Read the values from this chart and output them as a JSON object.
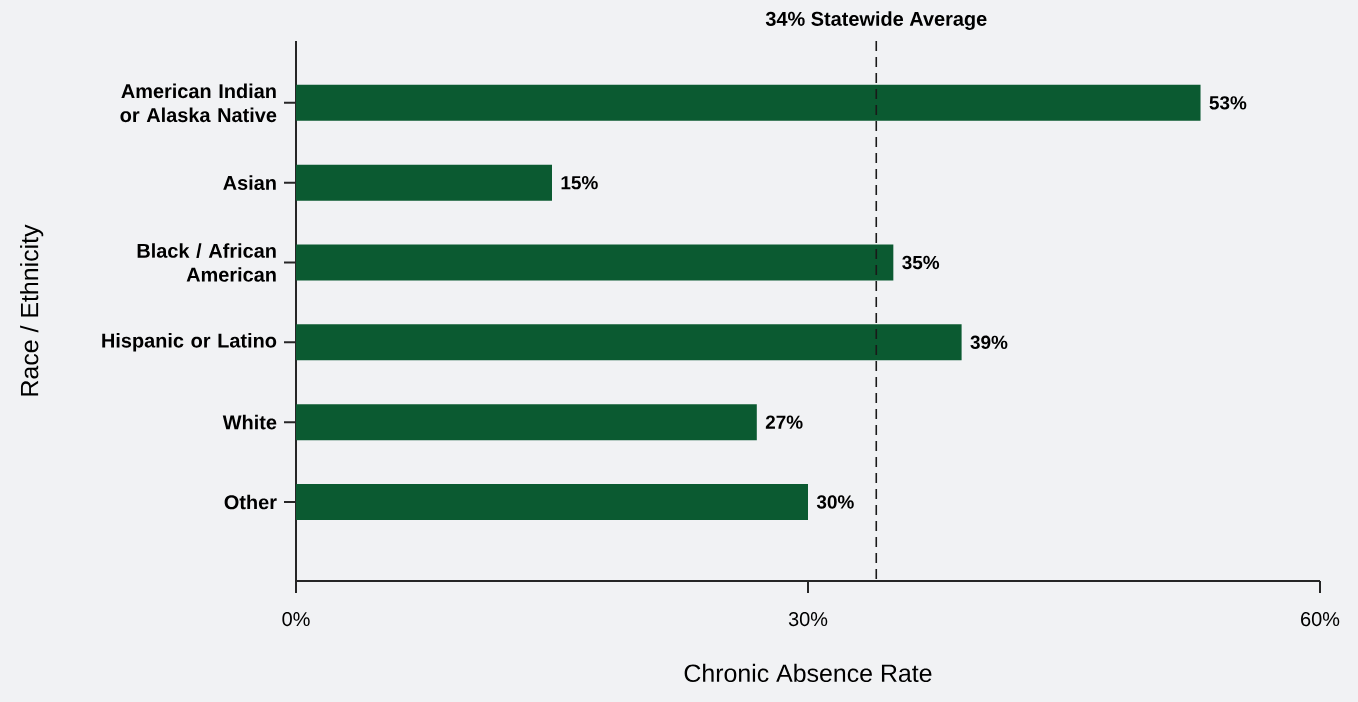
{
  "chart_data": {
    "type": "bar",
    "orientation": "horizontal",
    "xlabel": "Chronic Absence Rate",
    "ylabel": "Race / Ethnicity",
    "categories": [
      "American Indian or Alaska Native",
      "Asian",
      "Black / African American",
      "Hispanic or Latino",
      "White",
      "Other"
    ],
    "values": [
      53,
      15,
      35,
      39,
      27,
      30
    ],
    "value_labels": [
      "53%",
      "15%",
      "35%",
      "39%",
      "27%",
      "30%"
    ],
    "color": "#0b5a31",
    "xlim": [
      0,
      60
    ],
    "xticks": [
      {
        "value": 0,
        "label": "0%"
      },
      {
        "value": 30,
        "label": "30%"
      },
      {
        "value": 60,
        "label": "60%"
      }
    ],
    "ref_lines": [
      {
        "axis": "x",
        "value": 34,
        "label": "34% Statewide Average",
        "line_style": "dashed",
        "color": "#1a1a1a"
      }
    ]
  }
}
